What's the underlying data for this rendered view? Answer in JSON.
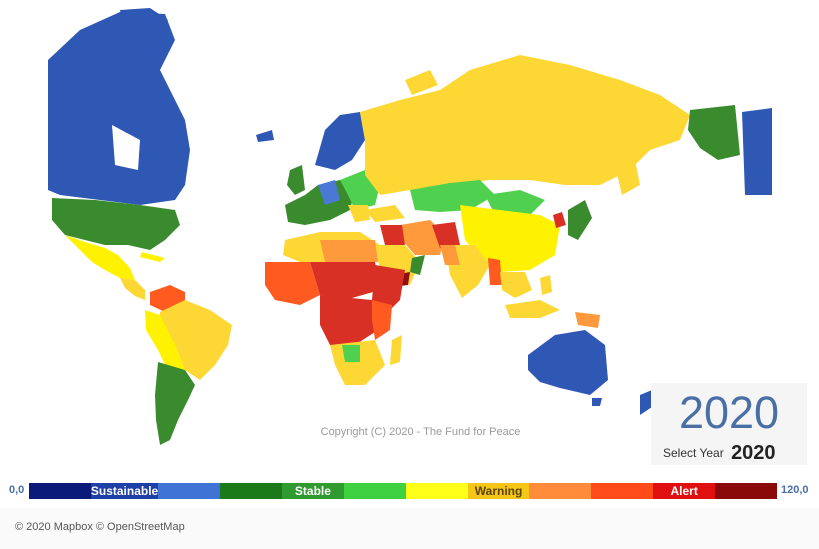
{
  "map": {
    "copyright": "Copyright (C) 2020 - The Fund for Peace",
    "attribution": "© 2020 Mapbox © OpenStreetMap"
  },
  "year_panel": {
    "big_year": "2020",
    "select_label": "Select Year",
    "select_value": "2020"
  },
  "legend": {
    "min_label": "0,0",
    "max_label": "120,0",
    "segments": [
      {
        "label": "",
        "color": "#0a1a7a"
      },
      {
        "label": "Sustainable",
        "color": "#1f3fa8"
      },
      {
        "label": "",
        "color": "#3f73d6"
      },
      {
        "label": "",
        "color": "#1a7a1a"
      },
      {
        "label": "Stable",
        "color": "#2f9a2f"
      },
      {
        "label": "",
        "color": "#3fd13f"
      },
      {
        "label": "",
        "color": "#ffff1a"
      },
      {
        "label": "Warning",
        "color": "#f5c518"
      },
      {
        "label": "",
        "color": "#ff8c3a"
      },
      {
        "label": "",
        "color": "#ff4a1a"
      },
      {
        "label": "Alert",
        "color": "#e01010"
      },
      {
        "label": "",
        "color": "#8a0a0a"
      }
    ]
  },
  "colors": {
    "sustainable": "#2f58b5",
    "stable": "#3a8a2e",
    "light_green": "#4fd14f",
    "yellow": "#fff200",
    "gold": "#fdd835",
    "orange": "#ff9a3c",
    "red_orange": "#ff5a1f",
    "red": "#d93025",
    "dark_red": "#8e1010"
  }
}
